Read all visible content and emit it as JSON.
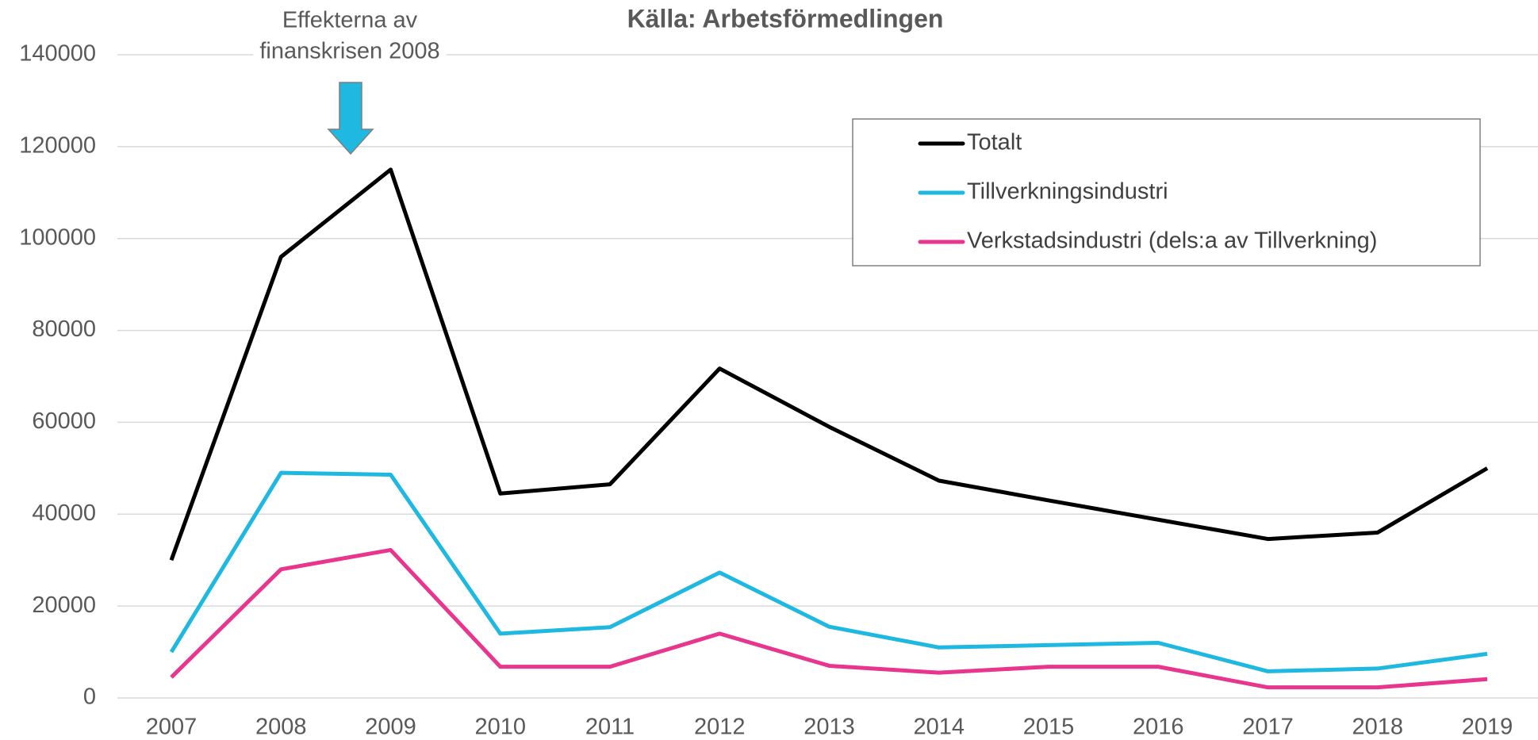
{
  "chart_data": {
    "type": "line",
    "title": "Källa: Arbetsförmedlingen",
    "annotation": [
      "Effekterna av",
      "finanskrisen 2008"
    ],
    "categories": [
      "2007",
      "2008",
      "2009",
      "2010",
      "2011",
      "2012",
      "2013",
      "2014",
      "2015",
      "2016",
      "2017",
      "2018",
      "2019"
    ],
    "series": [
      {
        "name": "Totalt",
        "color": "#000000",
        "values": [
          30000,
          96000,
          115000,
          44500,
          46500,
          71700,
          59000,
          47300,
          43000,
          38800,
          34600,
          36000,
          50000
        ]
      },
      {
        "name": "Tillverkningsindustri",
        "color": "#1fb8e0",
        "values": [
          10000,
          49000,
          48600,
          14000,
          15400,
          27300,
          15500,
          11000,
          11500,
          12000,
          5800,
          6400,
          9600
        ]
      },
      {
        "name": "Verkstadsindustri (dels:a av Tillverkning)",
        "color": "#e8368f",
        "values": [
          4500,
          28000,
          32200,
          6800,
          6800,
          14000,
          7000,
          5500,
          6800,
          6800,
          2300,
          2300,
          4100
        ]
      }
    ],
    "ylim": [
      0,
      140000
    ],
    "yticks": [
      0,
      20000,
      40000,
      60000,
      80000,
      100000,
      120000,
      140000
    ],
    "grid": true,
    "legend": "upper right"
  }
}
